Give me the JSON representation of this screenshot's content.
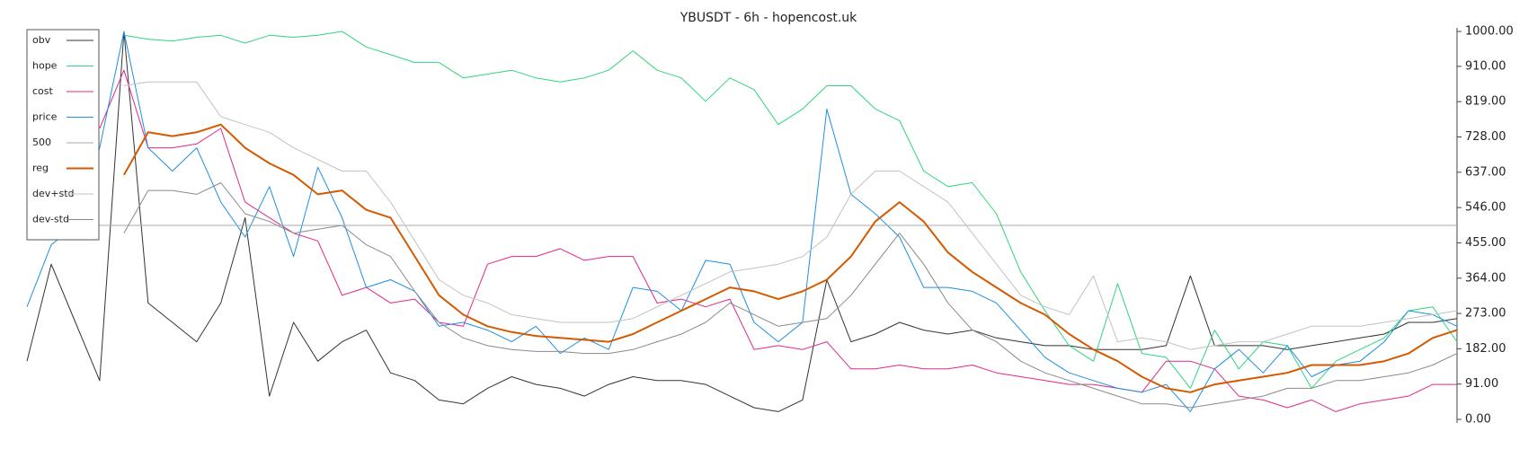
{
  "chart_data": {
    "type": "line",
    "title": "YBUSDT - 6h - hopencost.uk",
    "ylim": [
      0,
      1000
    ],
    "yticks": [
      {
        "value": 0,
        "label": "0.00"
      },
      {
        "value": 91,
        "label": "91.00"
      },
      {
        "value": 182,
        "label": "182.00"
      },
      {
        "value": 273,
        "label": "273.00"
      },
      {
        "value": 364,
        "label": "364.00"
      },
      {
        "value": 455,
        "label": "455.00"
      },
      {
        "value": 546,
        "label": "546.00"
      },
      {
        "value": 637,
        "label": "637.00"
      },
      {
        "value": 728,
        "label": "728.00"
      },
      {
        "value": 819,
        "label": "819.00"
      },
      {
        "value": 910,
        "label": "910.00"
      },
      {
        "value": 1000,
        "label": "1000.00"
      }
    ],
    "y_axis_side": "right",
    "legend": "upper left",
    "series": [
      {
        "name": "obv",
        "color": "#333333",
        "width": 1,
        "values": [
          150,
          400,
          250,
          100,
          1000,
          300,
          250,
          200,
          300,
          520,
          60,
          250,
          150,
          200,
          230,
          120,
          100,
          50,
          40,
          80,
          110,
          90,
          80,
          60,
          90,
          110,
          100,
          100,
          90,
          60,
          30,
          20,
          50,
          360,
          200,
          220,
          250,
          230,
          220,
          230,
          210,
          200,
          190,
          190,
          180,
          180,
          180,
          190,
          370,
          190,
          190,
          190,
          180,
          190,
          200,
          210,
          220,
          250,
          250,
          260
        ]
      },
      {
        "name": "hope",
        "color": "#2fd67a",
        "width": 1,
        "values": [
          null,
          null,
          null,
          null,
          990,
          980,
          975,
          985,
          990,
          970,
          990,
          985,
          990,
          1000,
          960,
          940,
          920,
          920,
          880,
          890,
          900,
          880,
          870,
          880,
          900,
          950,
          900,
          880,
          820,
          880,
          850,
          760,
          800,
          860,
          860,
          800,
          770,
          640,
          600,
          610,
          530,
          380,
          280,
          190,
          150,
          350,
          170,
          160,
          80,
          230,
          130,
          200,
          190,
          80,
          150,
          180,
          210,
          280,
          290,
          200
        ]
      },
      {
        "name": "cost",
        "color": "#e0288a",
        "width": 1,
        "values": [
          null,
          null,
          null,
          750,
          900,
          700,
          700,
          710,
          750,
          560,
          520,
          480,
          460,
          320,
          340,
          300,
          310,
          250,
          240,
          400,
          420,
          420,
          440,
          410,
          420,
          420,
          300,
          310,
          290,
          310,
          180,
          190,
          180,
          200,
          130,
          130,
          140,
          130,
          130,
          140,
          120,
          110,
          100,
          90,
          90,
          80,
          70,
          150,
          150,
          130,
          60,
          50,
          30,
          50,
          20,
          40,
          50,
          60,
          90,
          90
        ]
      },
      {
        "name": "price",
        "color": "#1f8fe0",
        "width": 1,
        "values": [
          290,
          450,
          500,
          700,
          1000,
          700,
          640,
          700,
          560,
          470,
          600,
          420,
          650,
          520,
          340,
          360,
          330,
          240,
          250,
          230,
          200,
          240,
          170,
          210,
          180,
          340,
          330,
          280,
          410,
          400,
          250,
          200,
          250,
          800,
          580,
          530,
          470,
          340,
          340,
          330,
          300,
          230,
          160,
          120,
          100,
          80,
          70,
          90,
          20,
          130,
          180,
          120,
          190,
          110,
          140,
          150,
          200,
          280,
          270,
          240
        ]
      },
      {
        "name": "500",
        "color": "#aaaaaa",
        "width": 1,
        "values": [
          500,
          500,
          500,
          500,
          500,
          500,
          500,
          500,
          500,
          500,
          500,
          500,
          500,
          500,
          500,
          500,
          500,
          500,
          500,
          500,
          500,
          500,
          500,
          500,
          500,
          500,
          500,
          500,
          500,
          500,
          500,
          500,
          500,
          500,
          500,
          500,
          500,
          500,
          500,
          500,
          500,
          500,
          500,
          500,
          500,
          500,
          500,
          500,
          500,
          500,
          500,
          500,
          500,
          500,
          500,
          500,
          500,
          500,
          500,
          500
        ]
      },
      {
        "name": "reg",
        "color": "#d35a00",
        "width": 2,
        "values": [
          null,
          null,
          null,
          null,
          630,
          740,
          730,
          740,
          760,
          700,
          660,
          630,
          580,
          590,
          540,
          520,
          420,
          320,
          270,
          240,
          225,
          215,
          210,
          205,
          200,
          220,
          250,
          280,
          310,
          340,
          330,
          310,
          330,
          360,
          420,
          510,
          560,
          510,
          430,
          380,
          340,
          300,
          270,
          220,
          180,
          150,
          110,
          80,
          70,
          90,
          100,
          110,
          120,
          140,
          140,
          140,
          150,
          170,
          210,
          230
        ]
      },
      {
        "name": "dev+std",
        "color": "#c2c2c2",
        "width": 1,
        "values": [
          null,
          null,
          null,
          null,
          860,
          870,
          870,
          870,
          780,
          760,
          740,
          700,
          670,
          640,
          640,
          560,
          460,
          360,
          320,
          300,
          270,
          260,
          250,
          250,
          250,
          260,
          290,
          320,
          350,
          380,
          390,
          400,
          420,
          470,
          580,
          640,
          640,
          600,
          560,
          480,
          400,
          320,
          290,
          270,
          370,
          200,
          210,
          200,
          180,
          190,
          200,
          200,
          220,
          240,
          240,
          240,
          250,
          260,
          270,
          280
        ]
      },
      {
        "name": "dev-std",
        "color": "#8a8a8a",
        "width": 1,
        "values": [
          null,
          null,
          null,
          null,
          480,
          590,
          590,
          580,
          610,
          530,
          510,
          480,
          490,
          500,
          450,
          420,
          330,
          250,
          210,
          190,
          180,
          175,
          175,
          170,
          170,
          180,
          200,
          220,
          250,
          300,
          270,
          240,
          250,
          260,
          320,
          400,
          480,
          400,
          300,
          230,
          200,
          150,
          120,
          100,
          80,
          60,
          40,
          40,
          30,
          40,
          50,
          60,
          80,
          80,
          100,
          100,
          110,
          120,
          140,
          170
        ]
      }
    ]
  }
}
